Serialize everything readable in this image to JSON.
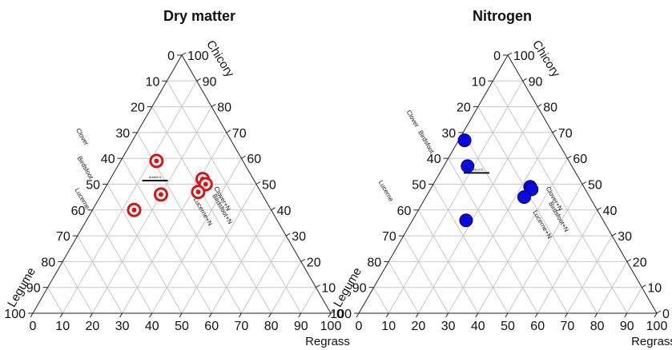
{
  "chart_data": [
    {
      "type": "ternary-scatter",
      "title": "Dry matter",
      "axes": {
        "legume": "Legume",
        "chicory": "Chicory",
        "regrass": "Regrass"
      },
      "ticks": [
        "0",
        "10",
        "20",
        "30",
        "40",
        "50",
        "60",
        "70",
        "80",
        "90",
        "100"
      ],
      "marker": {
        "style": "target",
        "color": "#e01010"
      },
      "annotations": [
        {
          "text": "Clover",
          "legume": 50,
          "chicory": 68,
          "rotate": 60
        },
        {
          "text": "Birdsfoot",
          "legume": 55,
          "chicory": 56,
          "rotate": 60
        },
        {
          "text": "Lucerne",
          "legume": 62,
          "chicory": 44,
          "rotate": 60
        },
        {
          "text": "Clover+N",
          "legume": 15,
          "chicory": 44,
          "rotate": 60
        },
        {
          "text": "Birdsfoot+N",
          "legume": 17,
          "chicory": 40,
          "rotate": 60
        },
        {
          "text": "Lucerne+N",
          "legume": 24,
          "chicory": 39,
          "rotate": 60
        },
        {
          "text": "Added N",
          "legume": 33,
          "chicory": 52,
          "rotate": 0,
          "small": true
        }
      ],
      "points": [
        {
          "legume": 29,
          "chicory": 59
        },
        {
          "legume": 34,
          "chicory": 46
        },
        {
          "legume": 46,
          "chicory": 40
        },
        {
          "legume": 17,
          "chicory": 52
        },
        {
          "legume": 17,
          "chicory": 50
        },
        {
          "legume": 21,
          "chicory": 47
        }
      ]
    },
    {
      "type": "ternary-scatter",
      "title": "Nitrogen",
      "axes": {
        "legume": "Legume",
        "chicory": "Chicory",
        "regrass": "Regrass"
      },
      "ticks": [
        "0",
        "10",
        "20",
        "30",
        "40",
        "50",
        "60",
        "70",
        "80",
        "90",
        "100"
      ],
      "marker": {
        "style": "filled",
        "color": "#0a0ae0"
      },
      "annotations": [
        {
          "text": "Clover",
          "legume": 45,
          "chicory": 75,
          "rotate": 60
        },
        {
          "text": "Birdsfoot",
          "legume": 45,
          "chicory": 66,
          "rotate": 60
        },
        {
          "text": "Lucerne",
          "legume": 68,
          "chicory": 47,
          "rotate": 60
        },
        {
          "text": "Clover+N",
          "legume": 13,
          "chicory": 44,
          "rotate": 60
        },
        {
          "text": "Birdsfoot+N",
          "legume": 15,
          "chicory": 37,
          "rotate": 60
        },
        {
          "text": "Lucerne+N",
          "legume": 22,
          "chicory": 34,
          "rotate": 60
        },
        {
          "text": "Added N",
          "legume": 33,
          "chicory": 55,
          "rotate": 0,
          "small": true
        }
      ],
      "points": [
        {
          "legume": 31,
          "chicory": 67
        },
        {
          "legume": 35,
          "chicory": 57
        },
        {
          "legume": 18,
          "chicory": 49
        },
        {
          "legume": 18,
          "chicory": 48
        },
        {
          "legume": 22,
          "chicory": 45
        },
        {
          "legume": 46,
          "chicory": 36
        }
      ]
    }
  ]
}
